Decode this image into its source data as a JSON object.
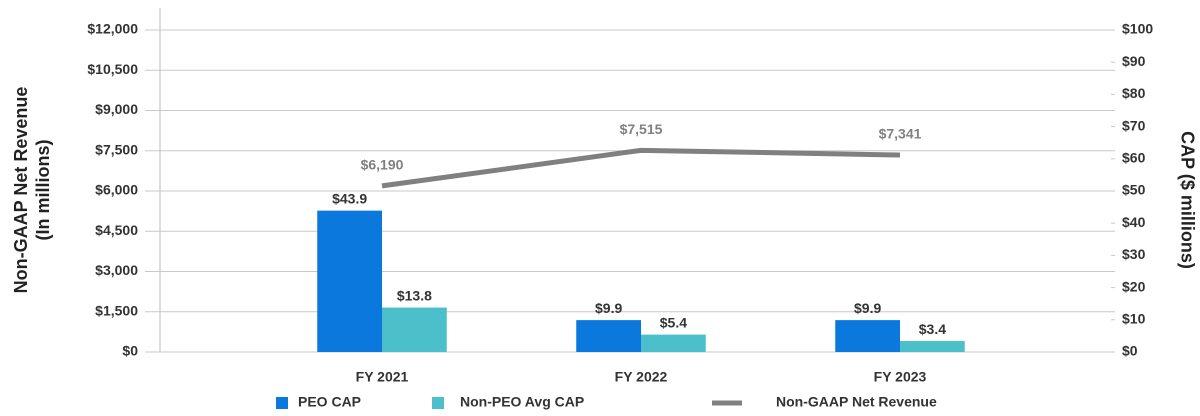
{
  "chart_data": {
    "type": "bar",
    "categories": [
      "FY 2021",
      "FY 2022",
      "FY 2023"
    ],
    "ylabel": "Non-GAAP Net Revenue",
    "ylabel_sub": "(In millions)",
    "y2label": "CAP ($ millions)",
    "ylim": [
      0,
      12000
    ],
    "yticks": [
      {
        "value": 0,
        "label": "$0"
      },
      {
        "value": 1500,
        "label": "$1,500"
      },
      {
        "value": 3000,
        "label": "$3,000"
      },
      {
        "value": 4500,
        "label": "$4,500"
      },
      {
        "value": 6000,
        "label": "$6,000"
      },
      {
        "value": 7500,
        "label": "$7,500"
      },
      {
        "value": 9000,
        "label": "$9,000"
      },
      {
        "value": 10500,
        "label": "$10,500"
      },
      {
        "value": 12000,
        "label": "$12,000"
      }
    ],
    "y2lim": [
      0,
      100
    ],
    "y2ticks": [
      {
        "value": 0,
        "label": "$0"
      },
      {
        "value": 10,
        "label": "$10"
      },
      {
        "value": 20,
        "label": "$20"
      },
      {
        "value": 30,
        "label": "$30"
      },
      {
        "value": 40,
        "label": "$40"
      },
      {
        "value": 50,
        "label": "$50"
      },
      {
        "value": 60,
        "label": "$60"
      },
      {
        "value": 70,
        "label": "$70"
      },
      {
        "value": 80,
        "label": "$80"
      },
      {
        "value": 90,
        "label": "$90"
      },
      {
        "value": 100,
        "label": "$100"
      }
    ],
    "grid": true,
    "legend": "bottom",
    "series": [
      {
        "name": "PEO CAP",
        "type": "bar",
        "axis": "y2",
        "color": "#0a78dc",
        "values": [
          43.9,
          9.9,
          9.9
        ],
        "value_labels": [
          "$43.9",
          "$9.9",
          "$9.9"
        ]
      },
      {
        "name": "Non-PEO Avg CAP",
        "type": "bar",
        "axis": "y2",
        "color": "#4bbfca",
        "values": [
          13.8,
          5.4,
          3.4
        ],
        "value_labels": [
          "$13.8",
          "$5.4",
          "$3.4"
        ]
      },
      {
        "name": "Non-GAAP Net Revenue",
        "type": "line",
        "color": "#808080",
        "values": [
          6190,
          7515,
          7341
        ],
        "value_labels": [
          "$6,190",
          "$7,515",
          "$7,341"
        ]
      }
    ]
  }
}
